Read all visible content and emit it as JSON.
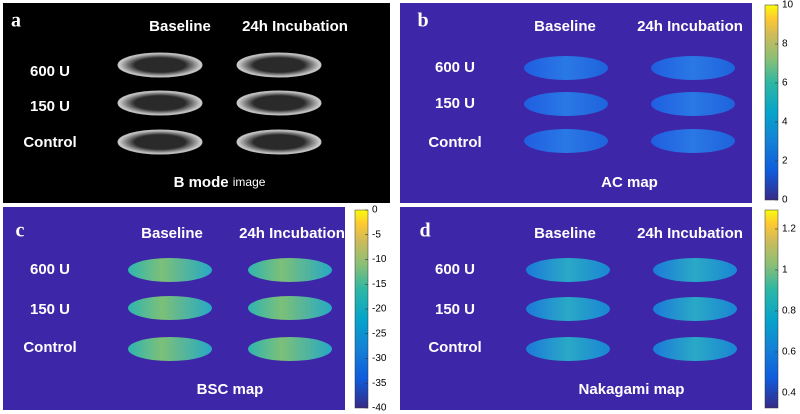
{
  "panels": [
    {
      "letter": "a",
      "columns": [
        "Baseline",
        "24h Incubation"
      ],
      "rows": [
        "600 U",
        "150 U",
        "Control"
      ],
      "caption": "B mode",
      "caption_suffix": "image"
    },
    {
      "letter": "b",
      "columns": [
        "Baseline",
        "24h Incubation"
      ],
      "rows": [
        "600 U",
        "150 U",
        "Control"
      ],
      "caption": "AC map",
      "colorbar_ticks": [
        10,
        8,
        6,
        4,
        2,
        0
      ]
    },
    {
      "letter": "c",
      "columns": [
        "Baseline",
        "24h Incubation"
      ],
      "rows": [
        "600 U",
        "150 U",
        "Control"
      ],
      "caption": "BSC map",
      "colorbar_ticks": [
        0,
        -5,
        -10,
        -15,
        -20,
        -25,
        -30,
        -35,
        -40
      ]
    },
    {
      "letter": "d",
      "columns": [
        "Baseline",
        "24h Incubation"
      ],
      "rows": [
        "600 U",
        "150 U",
        "Control"
      ],
      "caption": "Nakagami map",
      "colorbar_ticks": [
        1.2,
        1,
        0.8,
        0.6,
        0.4
      ]
    }
  ]
}
